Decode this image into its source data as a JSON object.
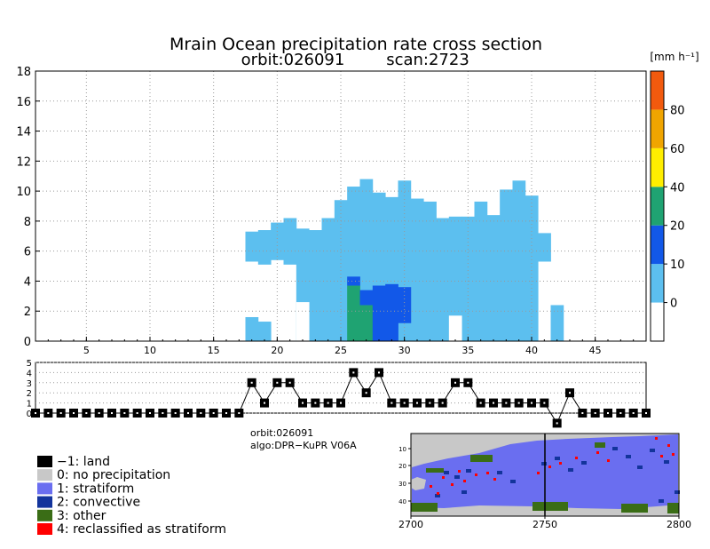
{
  "chart_data": [
    {
      "type": "heatmap",
      "title": "Mrain Ocean precipitation rate cross section",
      "subtitle_orbit": "orbit:026091",
      "subtitle_scan": "scan:2723",
      "xlim": [
        1,
        49
      ],
      "ylim": [
        0,
        18
      ],
      "x_ticks": [
        "5",
        "10",
        "15",
        "20",
        "25",
        "30",
        "35",
        "40",
        "45"
      ],
      "y_ticks": [
        "0",
        "2",
        "4",
        "6",
        "8",
        "10",
        "12",
        "14",
        "16",
        "18"
      ],
      "grid": true,
      "base_color": "#5cbfef",
      "columns": [
        {
          "x": 18,
          "lo": 5.3,
          "hi": 7.3
        },
        {
          "x": 19,
          "lo": 5.1,
          "hi": 7.4
        },
        {
          "x": 20,
          "lo": 5.4,
          "hi": 7.9
        },
        {
          "x": 21,
          "lo": 5.1,
          "hi": 8.2
        },
        {
          "x": 22,
          "lo": 0,
          "hi": 7.5
        },
        {
          "x": 23,
          "lo": 0,
          "hi": 7.4
        },
        {
          "x": 24,
          "lo": 0,
          "hi": 8.2
        },
        {
          "x": 25,
          "lo": 0,
          "hi": 9.4
        },
        {
          "x": 26,
          "lo": 0,
          "hi": 10.3
        },
        {
          "x": 27,
          "lo": 0,
          "hi": 10.8
        },
        {
          "x": 28,
          "lo": 0,
          "hi": 9.9
        },
        {
          "x": 29,
          "lo": 0,
          "hi": 9.6
        },
        {
          "x": 30,
          "lo": 0,
          "hi": 10.7
        },
        {
          "x": 31,
          "lo": 0,
          "hi": 9.5
        },
        {
          "x": 32,
          "lo": 0,
          "hi": 9.3
        },
        {
          "x": 33,
          "lo": 0,
          "hi": 8.2
        },
        {
          "x": 34,
          "lo": 0,
          "hi": 8.3
        },
        {
          "x": 35,
          "lo": 0,
          "hi": 8.3
        },
        {
          "x": 36,
          "lo": 0,
          "hi": 9.3
        },
        {
          "x": 37,
          "lo": 0,
          "hi": 8.4
        },
        {
          "x": 38,
          "lo": 0,
          "hi": 10.1
        },
        {
          "x": 39,
          "lo": 0,
          "hi": 10.7
        },
        {
          "x": 40,
          "lo": 0,
          "hi": 9.7
        }
      ],
      "extra_cells": [
        {
          "x": 18,
          "lo": 0,
          "hi": 1.6
        },
        {
          "x": 19,
          "lo": 0,
          "hi": 1.3
        },
        {
          "x": 41,
          "lo": 5.3,
          "hi": 7.2
        },
        {
          "x": 42,
          "lo": 0,
          "hi": 2.4
        }
      ],
      "gaps": [
        {
          "x": 22,
          "lo": 0,
          "hi": 2.6
        },
        {
          "x": 34,
          "lo": 0,
          "hi": 1.7
        }
      ],
      "cells": [
        {
          "x": 26,
          "lo": 0,
          "hi": 3.7,
          "color": "#1fa372"
        },
        {
          "x": 26,
          "lo": 3.7,
          "hi": 4.3,
          "color": "#1258e8"
        },
        {
          "x": 27,
          "lo": 0,
          "hi": 2.4,
          "color": "#1fa372"
        },
        {
          "x": 27,
          "lo": 2.4,
          "hi": 3.4,
          "color": "#1258e8"
        },
        {
          "x": 28,
          "lo": 0,
          "hi": 3.7,
          "color": "#1258e8"
        },
        {
          "x": 29,
          "lo": 0,
          "hi": 3.8,
          "color": "#1258e8"
        },
        {
          "x": 30,
          "lo": 1.2,
          "hi": 3.6,
          "color": "#1258e8"
        }
      ],
      "colorbar": {
        "unit": "[mm h⁻¹]",
        "labels": [
          "0",
          "10",
          "20",
          "40",
          "60",
          "80"
        ],
        "colors": [
          "#ffffff",
          "#5cbfef",
          "#1258e8",
          "#1fa372",
          "#ffee00",
          "#f0a500",
          "#f25a0e"
        ]
      }
    },
    {
      "type": "line",
      "title": "",
      "xlim": [
        1,
        49
      ],
      "ylim": [
        0,
        5
      ],
      "y_ticks": [
        "0",
        "1",
        "2",
        "3",
        "4",
        "5"
      ],
      "values": [
        0,
        0,
        0,
        0,
        0,
        0,
        0,
        0,
        0,
        0,
        0,
        0,
        0,
        0,
        0,
        0,
        0,
        3,
        1,
        3,
        3,
        1,
        1,
        1,
        1,
        4,
        2,
        4,
        1,
        1,
        1,
        1,
        1,
        3,
        3,
        1,
        1,
        1,
        1,
        1,
        1,
        -1,
        2,
        0,
        0,
        0,
        0,
        0,
        0
      ]
    },
    {
      "type": "heatmap",
      "title": "",
      "x_ticks": [
        "2700",
        "2750",
        "2800"
      ],
      "y_ticks": [
        "10",
        "20",
        "30",
        "40"
      ],
      "classes": [
        "-1: land",
        "0: no precipitation",
        "1: stratiform",
        "2: convective",
        "3: other",
        "4: reclassified as stratiform"
      ]
    }
  ],
  "info": {
    "orbit": "orbit:026091",
    "algo": "algo:DPR−KuPR V06A"
  },
  "legend": [
    {
      "label": "−1: land",
      "color": "#000000"
    },
    {
      "label": "0: no precipitation",
      "color": "#c8c8c8"
    },
    {
      "label": "1: stratiform",
      "color": "#6a6ef0"
    },
    {
      "label": "2: convective",
      "color": "#13349c"
    },
    {
      "label": "3: other",
      "color": "#3a6d16"
    },
    {
      "label": "4: reclassified as stratiform",
      "color": "#ff0000"
    }
  ]
}
